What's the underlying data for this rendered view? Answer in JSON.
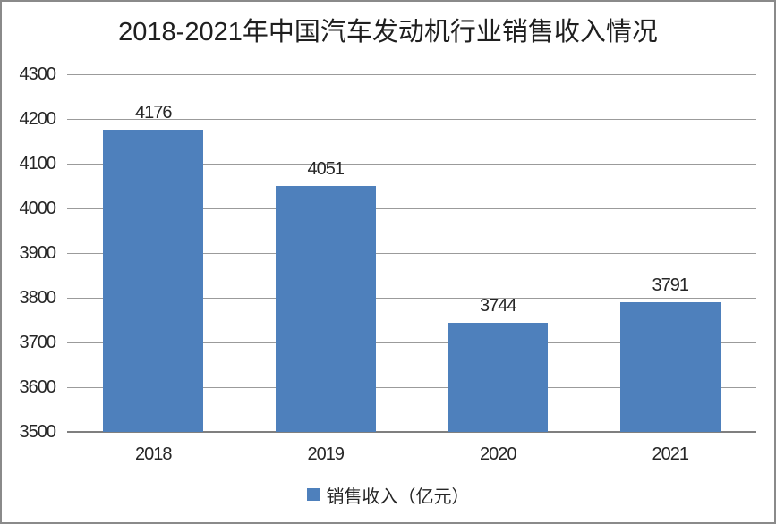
{
  "chart_data": {
    "type": "bar",
    "title": "2018-2021年中国汽车发动机行业销售收入情况",
    "categories": [
      "2018",
      "2019",
      "2020",
      "2021"
    ],
    "values": [
      4176,
      4051,
      3744,
      3791
    ],
    "series_name": "销售收入（亿元）",
    "xlabel": "",
    "ylabel": "",
    "ylim": [
      3500,
      4300
    ],
    "ytick_step": 100,
    "ytick_labels": [
      "4300",
      "4200",
      "4100",
      "4000",
      "3900",
      "3800",
      "3700",
      "3600",
      "3500"
    ],
    "grid": true,
    "legend_position": "bottom",
    "colors": {
      "bar_fill": "#4E80BC",
      "gridline": "#9b9b9b",
      "axis_line": "#7f7f7f",
      "text": "#262626",
      "frame_border": "#8a8a8a",
      "background": "#ffffff"
    }
  }
}
